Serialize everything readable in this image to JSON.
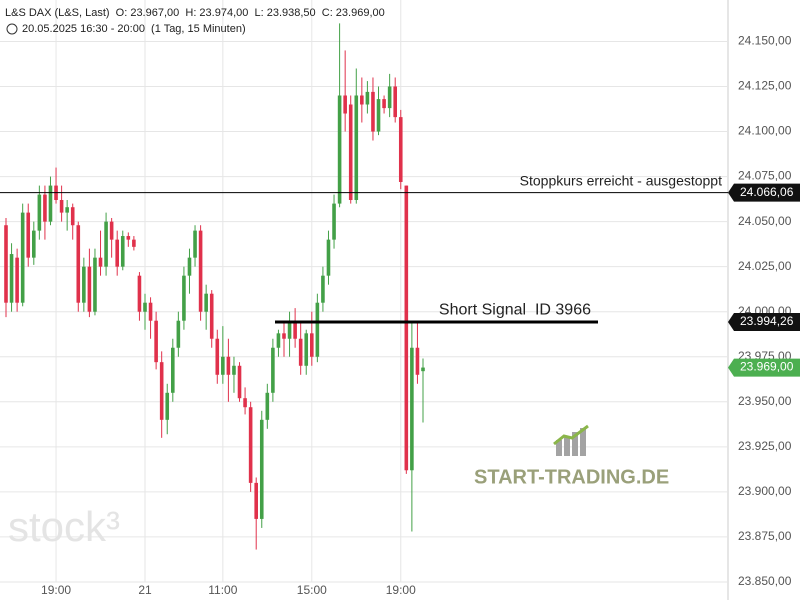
{
  "chart_data": {
    "type": "candlestick",
    "title": "L&S DAX (L&S, Last)  O: 23.967,00  H: 23.974,00  L: 23.938,50  C: 23.969,00",
    "subtitle": "20.05.2025 16:30 - 20:00  (1 Tag, 15 Minuten)",
    "categories": [
      null,
      null,
      null,
      null,
      null,
      null,
      null,
      null,
      null,
      "19:00",
      null,
      null,
      null,
      null,
      null,
      null,
      null,
      null,
      null,
      null,
      null,
      null,
      null,
      null,
      null,
      "21",
      null,
      null,
      null,
      null,
      null,
      null,
      null,
      null,
      null,
      null,
      null,
      null,
      null,
      "11:00",
      null,
      null,
      null,
      null,
      null,
      null,
      null,
      null,
      null,
      null,
      null,
      null,
      null,
      null,
      null,
      "15:00",
      null,
      null,
      null,
      null,
      null,
      null,
      null,
      null,
      null,
      null,
      null,
      null,
      null,
      null,
      null,
      "19:00",
      null,
      null,
      null,
      null
    ],
    "open": [
      24048,
      24005,
      24030,
      24005,
      24055,
      24030,
      24045,
      24065,
      24050,
      24070,
      24062,
      24055,
      24058,
      24048,
      24005,
      24025,
      24000,
      24030,
      24025,
      24050,
      24040,
      24025,
      24042,
      24040,
      24020,
      24000,
      24005,
      23995,
      23972,
      23940,
      23955,
      23980,
      23995,
      24020,
      24030,
      24045,
      24000,
      24010,
      23985,
      23965,
      23975,
      23965,
      23970,
      23952,
      23947,
      23905,
      23885,
      23940,
      23955,
      23980,
      23988,
      23985,
      23995,
      23985,
      23970,
      23988,
      23975,
      24005,
      24020,
      24040,
      24060,
      24120,
      24115,
      24062,
      24120,
      24115,
      24122,
      24100,
      24118,
      24113,
      24125,
      24108,
      24070,
      23912,
      23980,
      23967
    ],
    "high": [
      24052,
      24038,
      24035,
      24060,
      24060,
      24050,
      24070,
      24070,
      24075,
      24080,
      24070,
      24062,
      24060,
      24050,
      24030,
      24035,
      24035,
      24045,
      24055,
      24052,
      24045,
      24045,
      24044,
      24042,
      24022,
      24010,
      24008,
      24000,
      23978,
      23960,
      23985,
      24000,
      24025,
      24035,
      24048,
      24048,
      24015,
      24012,
      23990,
      23992,
      23985,
      23975,
      23972,
      23958,
      23950,
      23908,
      23945,
      23960,
      23985,
      23990,
      23995,
      24000,
      24002,
      23995,
      23990,
      24000,
      24010,
      24025,
      24045,
      24065,
      24160,
      24145,
      24120,
      24135,
      24130,
      24128,
      24130,
      24125,
      24120,
      24132,
      24130,
      24112,
      24070,
      23995,
      23995,
      23974
    ],
    "low": [
      23997,
      24000,
      24000,
      24003,
      24025,
      24026,
      24040,
      24040,
      24048,
      24060,
      24050,
      24045,
      24040,
      24000,
      24000,
      23997,
      23998,
      24020,
      24020,
      24030,
      24020,
      24023,
      24036,
      24034,
      23995,
      23990,
      23985,
      23968,
      23930,
      23932,
      23950,
      23975,
      23990,
      24010,
      24025,
      23995,
      23990,
      23980,
      23960,
      23960,
      23950,
      23955,
      23950,
      23943,
      23900,
      23868,
      23880,
      23935,
      23950,
      23975,
      23975,
      23975,
      23980,
      23965,
      23965,
      23970,
      23972,
      24000,
      24015,
      24035,
      24058,
      24100,
      24060,
      24060,
      24105,
      24110,
      24095,
      24098,
      24110,
      24108,
      24105,
      24068,
      23910,
      23878,
      23960,
      23938.5
    ],
    "close": [
      24005,
      24032,
      24005,
      24055,
      24030,
      24045,
      24065,
      24050,
      24070,
      24062,
      24055,
      24058,
      24048,
      24005,
      24025,
      24000,
      24030,
      24025,
      24050,
      24040,
      24025,
      24042,
      24040,
      24036,
      24000,
      24005,
      23995,
      23972,
      23940,
      23955,
      23980,
      23995,
      24020,
      24030,
      24045,
      24000,
      24010,
      23985,
      23965,
      23975,
      23965,
      23970,
      23952,
      23947,
      23905,
      23885,
      23940,
      23955,
      23980,
      23988,
      23985,
      23995,
      23985,
      23970,
      23988,
      23975,
      24005,
      24020,
      24040,
      24060,
      24120,
      24110,
      24062,
      24120,
      24115,
      24122,
      24100,
      24118,
      24113,
      24125,
      24108,
      24072,
      23912,
      23980,
      23965,
      23969
    ],
    "up_color": "#43a047",
    "down_color": "#e0314b",
    "ylim": [
      23840,
      24173
    ],
    "yticks": [
      {
        "value": 23850,
        "label": "23.850,00"
      },
      {
        "value": 23875,
        "label": "23.875,00"
      },
      {
        "value": 23900,
        "label": "23.900,00"
      },
      {
        "value": 23925,
        "label": "23.925,00"
      },
      {
        "value": 23950,
        "label": "23.950,00"
      },
      {
        "value": 23975,
        "label": "23.975,00"
      },
      {
        "value": 24000,
        "label": "24.000,00"
      },
      {
        "value": 24025,
        "label": "24.025,00"
      },
      {
        "value": 24050,
        "label": "24.050,00"
      },
      {
        "value": 24075,
        "label": "24.075,00"
      },
      {
        "value": 24100,
        "label": "24.100,00"
      },
      {
        "value": 24125,
        "label": "24.125,00"
      },
      {
        "value": 24150,
        "label": "24.150,00"
      }
    ],
    "grid": true,
    "hlines": [
      {
        "value": 24066.06,
        "label": "24.066,06",
        "text": "Stoppkurs erreicht - ausgestoppt"
      },
      {
        "value": 23994.26,
        "label": "23.994,26",
        "text": "Short Signal  ID 3966"
      }
    ],
    "last": {
      "value": 23969,
      "label": "23.969,00",
      "color": "#4caf50"
    },
    "watermarks": [
      "stock³",
      "START-TRADING.DE"
    ]
  }
}
